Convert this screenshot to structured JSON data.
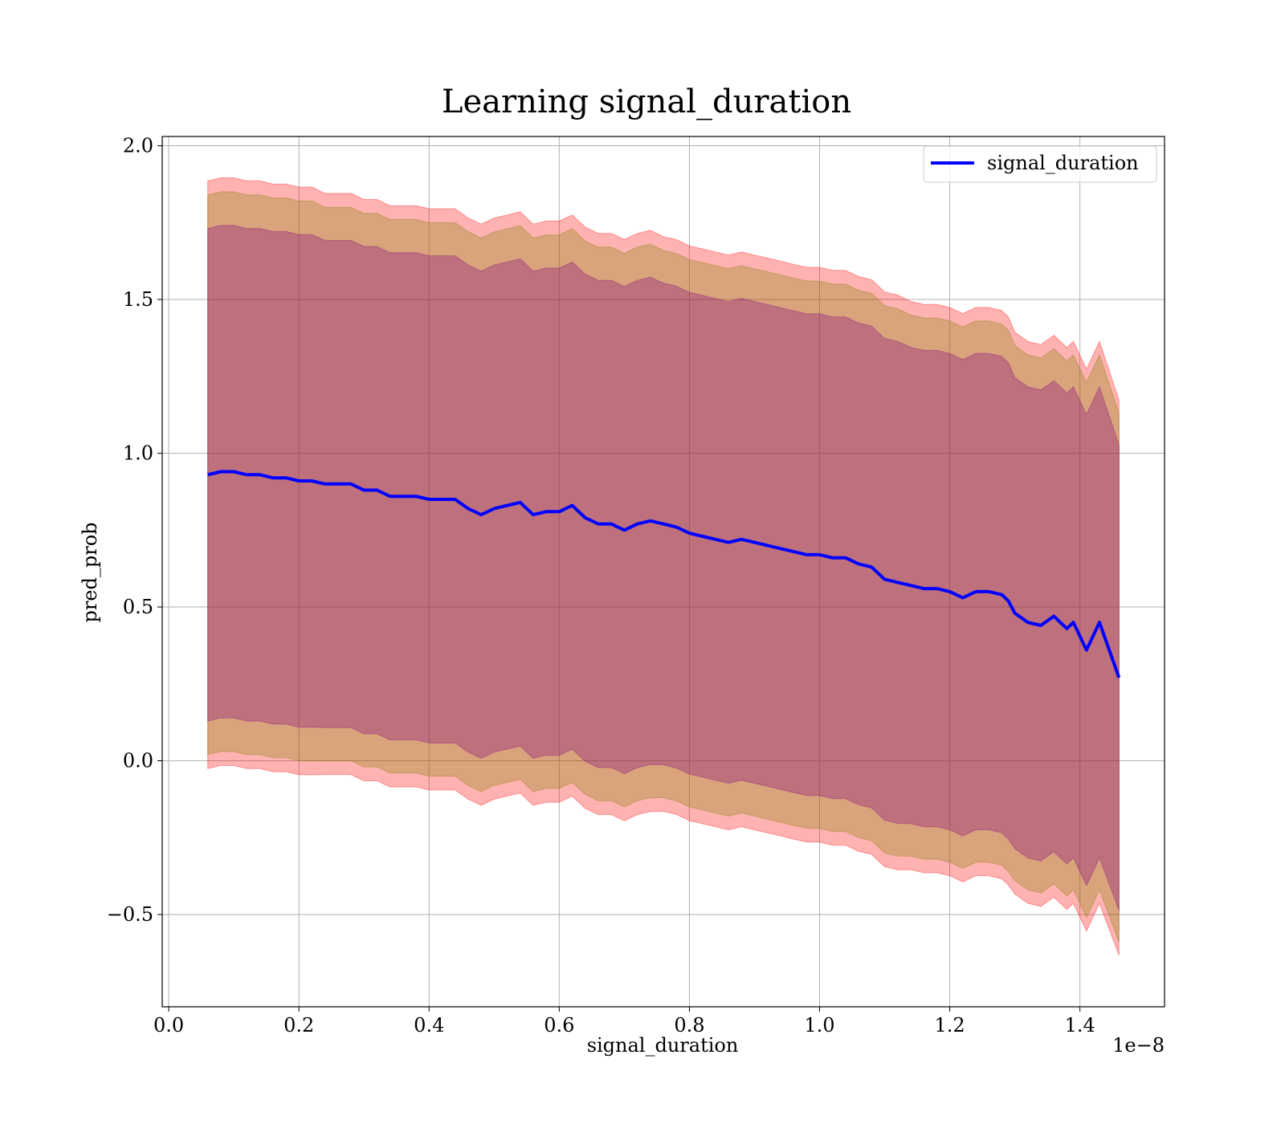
{
  "chart_data": {
    "type": "line",
    "title": "Learning signal_duration",
    "xlabel": "signal_duration",
    "ylabel": "pred_prob",
    "x_offset_text": "1e−8",
    "xlim": [
      -0.01,
      1.53
    ],
    "ylim": [
      -0.8,
      2.03
    ],
    "x_ticks": [
      0.0,
      0.2,
      0.4,
      0.6,
      0.8,
      1.0,
      1.2,
      1.4
    ],
    "x_tick_labels": [
      "0.0",
      "0.2",
      "0.4",
      "0.6",
      "0.8",
      "1.0",
      "1.2",
      "1.4"
    ],
    "y_ticks": [
      -0.5,
      0.0,
      0.5,
      1.0,
      1.5,
      2.0
    ],
    "y_tick_labels": [
      "−0.5",
      "0.0",
      "0.5",
      "1.0",
      "1.5",
      "2.0"
    ],
    "grid": true,
    "legend": {
      "position": "upper right",
      "entries": [
        "signal_duration"
      ]
    },
    "colors": {
      "line": "#0000ff",
      "band_outer": "#ff0000",
      "band_mid": "#808000",
      "band_inner": "#800080"
    },
    "band_alpha": 0.3,
    "series": [
      {
        "name": "signal_duration",
        "x": [
          0.06,
          0.08,
          0.1,
          0.12,
          0.14,
          0.16,
          0.18,
          0.2,
          0.22,
          0.24,
          0.26,
          0.28,
          0.3,
          0.32,
          0.34,
          0.36,
          0.38,
          0.4,
          0.42,
          0.44,
          0.46,
          0.48,
          0.5,
          0.52,
          0.54,
          0.56,
          0.58,
          0.6,
          0.62,
          0.64,
          0.66,
          0.68,
          0.7,
          0.72,
          0.74,
          0.76,
          0.78,
          0.8,
          0.82,
          0.84,
          0.86,
          0.88,
          0.9,
          0.92,
          0.94,
          0.96,
          0.98,
          1.0,
          1.02,
          1.04,
          1.06,
          1.08,
          1.1,
          1.12,
          1.14,
          1.16,
          1.18,
          1.2,
          1.22,
          1.24,
          1.26,
          1.28,
          1.29,
          1.3,
          1.32,
          1.34,
          1.36,
          1.38,
          1.39,
          1.41,
          1.43,
          1.46
        ],
        "y": [
          0.93,
          0.94,
          0.94,
          0.93,
          0.93,
          0.92,
          0.92,
          0.91,
          0.91,
          0.9,
          0.9,
          0.9,
          0.88,
          0.88,
          0.86,
          0.86,
          0.86,
          0.85,
          0.85,
          0.85,
          0.82,
          0.8,
          0.82,
          0.83,
          0.84,
          0.8,
          0.81,
          0.81,
          0.83,
          0.79,
          0.77,
          0.77,
          0.75,
          0.77,
          0.78,
          0.77,
          0.76,
          0.74,
          0.73,
          0.72,
          0.71,
          0.72,
          0.71,
          0.7,
          0.69,
          0.68,
          0.67,
          0.67,
          0.66,
          0.66,
          0.64,
          0.63,
          0.59,
          0.58,
          0.57,
          0.56,
          0.56,
          0.55,
          0.53,
          0.55,
          0.55,
          0.54,
          0.52,
          0.48,
          0.45,
          0.44,
          0.47,
          0.43,
          0.45,
          0.36,
          0.45,
          0.27
        ],
        "std": [
          0.91,
          0.91,
          0.91,
          0.91,
          0.91,
          0.91,
          0.91,
          0.91,
          0.91,
          0.9,
          0.9,
          0.9,
          0.9,
          0.9,
          0.9,
          0.9,
          0.9,
          0.9,
          0.9,
          0.9,
          0.9,
          0.9,
          0.9,
          0.9,
          0.9,
          0.9,
          0.9,
          0.9,
          0.9,
          0.9,
          0.9,
          0.9,
          0.9,
          0.9,
          0.9,
          0.89,
          0.89,
          0.89,
          0.89,
          0.89,
          0.89,
          0.89,
          0.89,
          0.89,
          0.89,
          0.89,
          0.89,
          0.89,
          0.89,
          0.89,
          0.89,
          0.89,
          0.89,
          0.89,
          0.88,
          0.88,
          0.88,
          0.88,
          0.88,
          0.88,
          0.88,
          0.88,
          0.88,
          0.87,
          0.87,
          0.87,
          0.87,
          0.87,
          0.87,
          0.87,
          0.87,
          0.86
        ],
        "band_scales": [
          1.05,
          1.0,
          0.88
        ]
      }
    ]
  }
}
